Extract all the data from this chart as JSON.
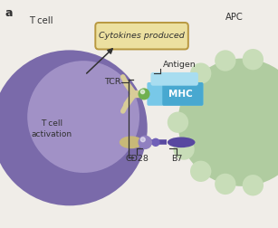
{
  "bg_color": "#f0ede8",
  "title_label": "a",
  "tcell_label": "T cell",
  "apc_label": "APC",
  "tcell_activation_label": "T cell\nactivation",
  "cytokines_label": "Cytokines produced",
  "tcr_label": "TCR",
  "antigen_label": "Antigen",
  "mhc_label": "MHC",
  "cd28_label": "CD28",
  "b7_label": "B7",
  "tcell_outer_color": "#7a6aaa",
  "tcell_inner_color": "#a899cc",
  "apc_color": "#b0cca0",
  "apc_highlight": "#c8ddb8",
  "tcr_color": "#d8cc98",
  "mhc_color_left": "#78c8e8",
  "mhc_color_right": "#48a8d0",
  "antigen_color": "#a8ddf0",
  "cd28_color": "#c8b878",
  "b7_color": "#5848a0",
  "connector_ball_color": "#9080c0",
  "green_dot_color": "#70b050",
  "cytokines_box_edge": "#b89840",
  "cytokines_box_face": "#ece0a0",
  "arrow_color": "#303030",
  "text_color": "#303030"
}
